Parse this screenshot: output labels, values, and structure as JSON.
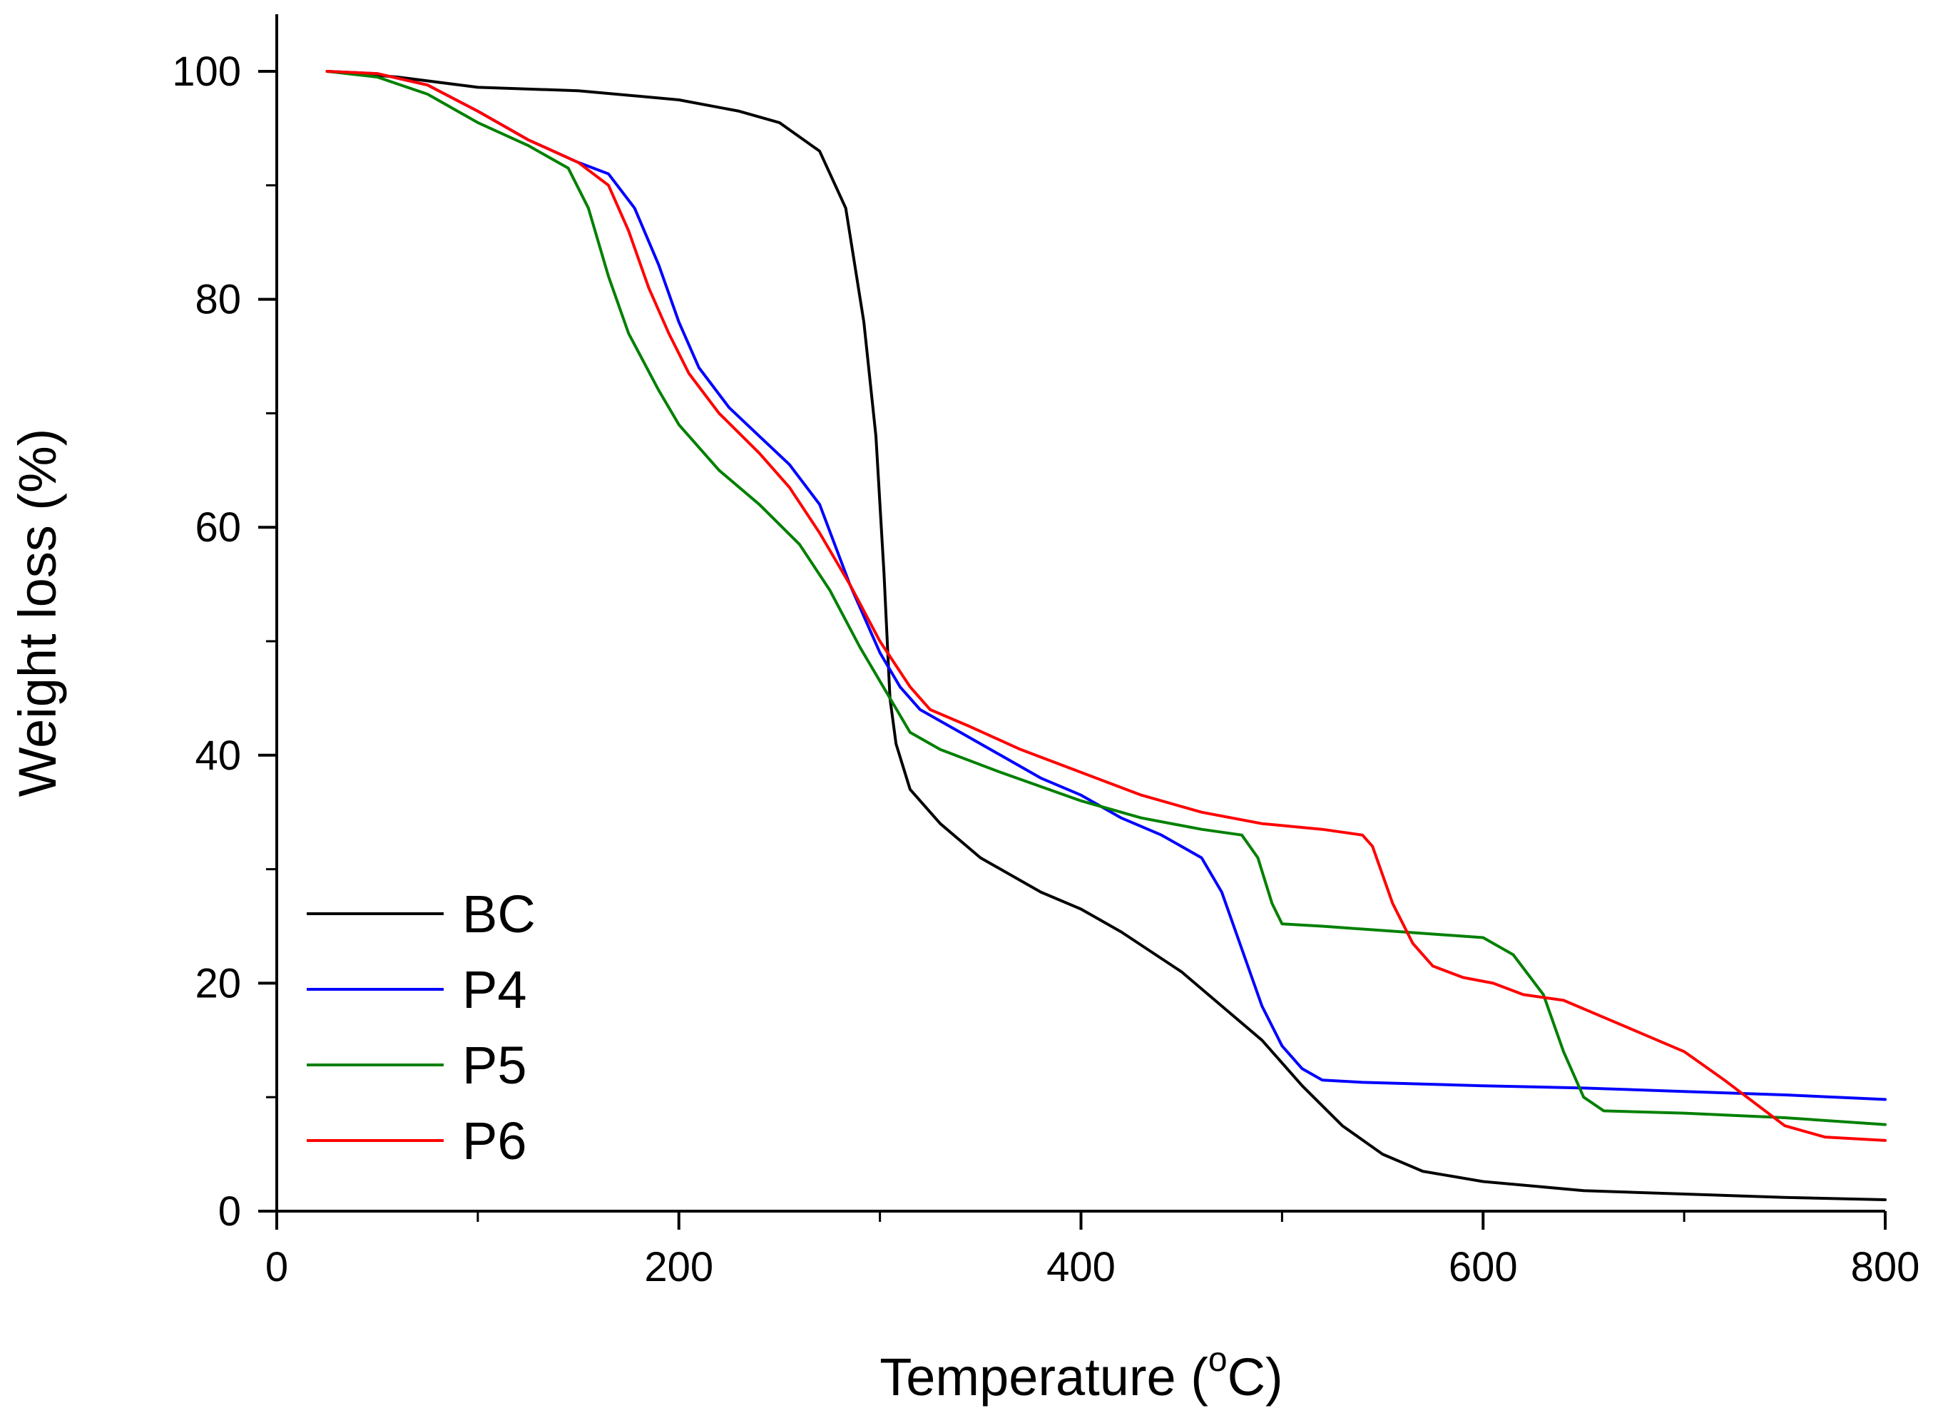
{
  "chart_data": {
    "type": "line",
    "title": "",
    "xlabel_main": "Temperature (",
    "xlabel_sup": "o",
    "xlabel_unit": "C)",
    "ylabel": "Weight loss (%)",
    "xlim": [
      0,
      800
    ],
    "ylim": [
      0,
      100
    ],
    "xticks": [
      0,
      200,
      400,
      600,
      800
    ],
    "yticks": [
      0,
      20,
      40,
      60,
      80,
      100
    ],
    "xtick_labels": [
      "0",
      "200",
      "400",
      "600",
      "800"
    ],
    "ytick_labels": [
      "0",
      "20",
      "40",
      "60",
      "80",
      "100"
    ],
    "legend_position": "bottom-left",
    "series": [
      {
        "name": "BC",
        "color": "#000000",
        "points": [
          [
            25,
            100
          ],
          [
            60,
            99.5
          ],
          [
            100,
            98.6
          ],
          [
            150,
            98.3
          ],
          [
            200,
            97.5
          ],
          [
            230,
            96.5
          ],
          [
            250,
            95.5
          ],
          [
            270,
            93
          ],
          [
            283,
            88
          ],
          [
            292,
            78
          ],
          [
            298,
            68
          ],
          [
            302,
            56
          ],
          [
            305,
            45
          ],
          [
            308,
            41
          ],
          [
            315,
            37
          ],
          [
            330,
            34
          ],
          [
            350,
            31
          ],
          [
            380,
            28
          ],
          [
            400,
            26.5
          ],
          [
            420,
            24.5
          ],
          [
            450,
            21
          ],
          [
            470,
            18
          ],
          [
            490,
            15
          ],
          [
            510,
            11
          ],
          [
            530,
            7.5
          ],
          [
            550,
            5
          ],
          [
            570,
            3.5
          ],
          [
            600,
            2.6
          ],
          [
            650,
            1.8
          ],
          [
            700,
            1.5
          ],
          [
            750,
            1.2
          ],
          [
            800,
            1
          ]
        ]
      },
      {
        "name": "P4",
        "color": "#0000ff",
        "points": [
          [
            25,
            100
          ],
          [
            50,
            99.8
          ],
          [
            75,
            98.8
          ],
          [
            100,
            96.5
          ],
          [
            125,
            94
          ],
          [
            150,
            92
          ],
          [
            165,
            91
          ],
          [
            178,
            88
          ],
          [
            190,
            83
          ],
          [
            200,
            78
          ],
          [
            210,
            74
          ],
          [
            225,
            70.5
          ],
          [
            240,
            68
          ],
          [
            255,
            65.5
          ],
          [
            270,
            62
          ],
          [
            285,
            55
          ],
          [
            300,
            49
          ],
          [
            310,
            46
          ],
          [
            320,
            44
          ],
          [
            340,
            42
          ],
          [
            360,
            40
          ],
          [
            380,
            38
          ],
          [
            400,
            36.5
          ],
          [
            420,
            34.5
          ],
          [
            440,
            33
          ],
          [
            460,
            31
          ],
          [
            470,
            28
          ],
          [
            480,
            23
          ],
          [
            490,
            18
          ],
          [
            500,
            14.5
          ],
          [
            510,
            12.5
          ],
          [
            520,
            11.5
          ],
          [
            540,
            11.3
          ],
          [
            600,
            11
          ],
          [
            650,
            10.8
          ],
          [
            700,
            10.5
          ],
          [
            750,
            10.2
          ],
          [
            800,
            9.8
          ]
        ]
      },
      {
        "name": "P5",
        "color": "#008000",
        "points": [
          [
            25,
            100
          ],
          [
            50,
            99.5
          ],
          [
            75,
            98
          ],
          [
            100,
            95.5
          ],
          [
            125,
            93.5
          ],
          [
            145,
            91.5
          ],
          [
            155,
            88
          ],
          [
            165,
            82
          ],
          [
            175,
            77
          ],
          [
            190,
            72
          ],
          [
            200,
            69
          ],
          [
            220,
            65
          ],
          [
            240,
            62
          ],
          [
            260,
            58.5
          ],
          [
            275,
            54.5
          ],
          [
            290,
            49.5
          ],
          [
            305,
            45
          ],
          [
            315,
            42
          ],
          [
            330,
            40.5
          ],
          [
            360,
            38.5
          ],
          [
            400,
            36
          ],
          [
            430,
            34.5
          ],
          [
            460,
            33.5
          ],
          [
            480,
            33
          ],
          [
            488,
            31
          ],
          [
            495,
            27
          ],
          [
            500,
            25.2
          ],
          [
            520,
            25
          ],
          [
            560,
            24.5
          ],
          [
            600,
            24
          ],
          [
            615,
            22.5
          ],
          [
            630,
            19
          ],
          [
            640,
            14
          ],
          [
            650,
            10
          ],
          [
            660,
            8.8
          ],
          [
            700,
            8.6
          ],
          [
            750,
            8.2
          ],
          [
            800,
            7.6
          ]
        ]
      },
      {
        "name": "P6",
        "color": "#ff0000",
        "points": [
          [
            25,
            100
          ],
          [
            50,
            99.8
          ],
          [
            75,
            98.8
          ],
          [
            100,
            96.5
          ],
          [
            125,
            94
          ],
          [
            150,
            92
          ],
          [
            165,
            90
          ],
          [
            175,
            86
          ],
          [
            185,
            81
          ],
          [
            195,
            77
          ],
          [
            205,
            73.5
          ],
          [
            220,
            70
          ],
          [
            240,
            66.5
          ],
          [
            255,
            63.5
          ],
          [
            270,
            59.5
          ],
          [
            285,
            55
          ],
          [
            300,
            50
          ],
          [
            315,
            46
          ],
          [
            325,
            44
          ],
          [
            345,
            42.5
          ],
          [
            370,
            40.5
          ],
          [
            400,
            38.5
          ],
          [
            430,
            36.5
          ],
          [
            460,
            35
          ],
          [
            490,
            34
          ],
          [
            520,
            33.5
          ],
          [
            540,
            33
          ],
          [
            545,
            32
          ],
          [
            555,
            27
          ],
          [
            565,
            23.5
          ],
          [
            575,
            21.5
          ],
          [
            590,
            20.5
          ],
          [
            605,
            20
          ],
          [
            620,
            19
          ],
          [
            640,
            18.5
          ],
          [
            660,
            17
          ],
          [
            680,
            15.5
          ],
          [
            700,
            14
          ],
          [
            720,
            11.5
          ],
          [
            735,
            9.5
          ],
          [
            750,
            7.5
          ],
          [
            770,
            6.5
          ],
          [
            800,
            6.2
          ]
        ]
      }
    ]
  }
}
